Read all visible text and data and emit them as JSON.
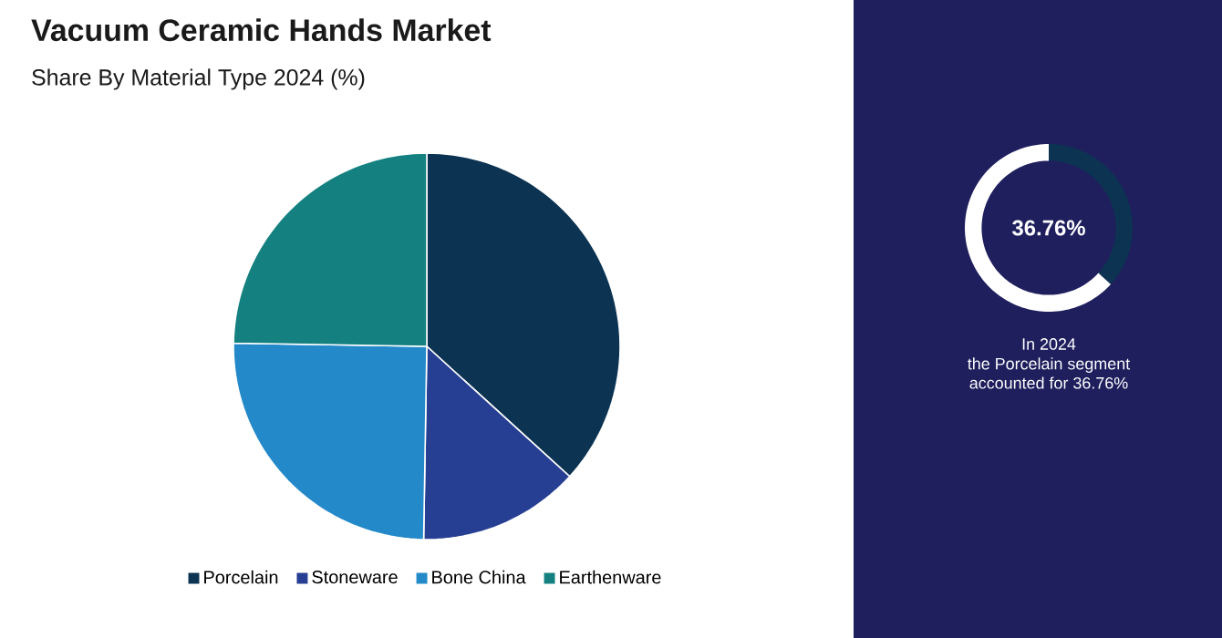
{
  "chart_data": [
    {
      "type": "pie",
      "title": "Vacuum Ceramic Hands Market",
      "subtitle": "Share By Material Type 2024 (%)",
      "categories": [
        "Porcelain",
        "Stoneware",
        "Bone China",
        "Earthenware"
      ],
      "values": [
        36.76,
        13.5,
        25.0,
        24.74
      ],
      "colors": [
        "#0c3352",
        "#263f93",
        "#2389c9",
        "#148080"
      ],
      "legend": "bottom"
    },
    {
      "type": "donut",
      "categories": [
        null,
        null
      ],
      "values": [
        36.76,
        63.24
      ],
      "colors": [
        "#0c3352",
        "#ffffff"
      ],
      "annotations": [
        "36.76%",
        "In 2024",
        "the Porcelain segment",
        "accounted for 36.76%"
      ]
    }
  ]
}
